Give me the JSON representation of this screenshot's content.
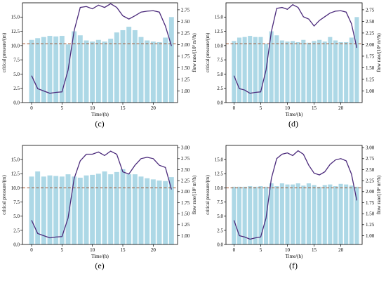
{
  "chart_data": [
    {
      "type": "bar",
      "panel_label": "(c)",
      "xlabel": "Time/(h)",
      "ylabel": "critical pressure/(m)",
      "y2label": "flow rate/(10³ m³/h)",
      "x_ticks": [
        0,
        5,
        10,
        15,
        20
      ],
      "y_ticks": [
        0.0,
        2.5,
        5.0,
        7.5,
        10.0,
        12.5,
        15.0
      ],
      "y2_ticks": [
        1.0,
        1.25,
        1.5,
        1.75,
        2.0,
        2.25,
        2.5,
        2.75
      ],
      "xlim": [
        -1.5,
        24
      ],
      "ylim": [
        0,
        17.5
      ],
      "y2lim": [
        0.75,
        2.9
      ],
      "reference_line": 10.3,
      "x": [
        0,
        1,
        2,
        3,
        4,
        5,
        6,
        7,
        8,
        9,
        10,
        11,
        12,
        13,
        14,
        15,
        16,
        17,
        18,
        19,
        20,
        21,
        22,
        23
      ],
      "series": [
        {
          "kind": "bar",
          "values": [
            11.0,
            11.3,
            11.5,
            11.7,
            11.6,
            11.7,
            10.2,
            12.5,
            11.8,
            10.9,
            10.7,
            11.0,
            10.7,
            11.2,
            12.3,
            12.7,
            13.3,
            12.7,
            11.5,
            10.9,
            10.7,
            10.6,
            11.4,
            15.0
          ]
        },
        {
          "kind": "line",
          "values": [
            1.33,
            1.05,
            1.0,
            0.95,
            0.97,
            0.98,
            1.45,
            2.3,
            2.8,
            2.82,
            2.77,
            2.85,
            2.8,
            2.88,
            2.8,
            2.62,
            2.55,
            2.62,
            2.7,
            2.72,
            2.73,
            2.7,
            2.4,
            1.97
          ]
        }
      ],
      "colors": {
        "bar": "#add8e6",
        "line": "#4b2a7b",
        "reference": "#a0522d"
      }
    },
    {
      "type": "bar",
      "panel_label": "(d)",
      "xlabel": "Time/(h)",
      "ylabel": "critical pressure/(m)",
      "y2label": "flow rate/(10³ m³/h)",
      "x_ticks": [
        0,
        5,
        10,
        15,
        20
      ],
      "y_ticks": [
        0.0,
        2.5,
        5.0,
        7.5,
        10.0,
        12.5,
        15.0
      ],
      "y2_ticks": [
        1.0,
        1.25,
        1.5,
        1.75,
        2.0,
        2.25,
        2.5,
        2.75
      ],
      "xlim": [
        -1.5,
        24
      ],
      "ylim": [
        0,
        17.5
      ],
      "y2lim": [
        0.75,
        2.9
      ],
      "reference_line": 10.3,
      "x": [
        0,
        1,
        2,
        3,
        4,
        5,
        6,
        7,
        8,
        9,
        10,
        11,
        12,
        13,
        14,
        15,
        16,
        17,
        18,
        19,
        20,
        21,
        22,
        23
      ],
      "series": [
        {
          "kind": "bar",
          "values": [
            10.8,
            11.4,
            11.5,
            11.7,
            11.5,
            11.5,
            10.3,
            12.5,
            11.8,
            10.9,
            10.7,
            10.8,
            10.6,
            11.0,
            10.5,
            10.8,
            11.0,
            10.7,
            11.5,
            10.9,
            10.6,
            10.6,
            11.4,
            15.0
          ]
        },
        {
          "kind": "line",
          "values": [
            1.33,
            1.05,
            1.02,
            0.95,
            0.97,
            0.98,
            1.45,
            2.28,
            2.78,
            2.8,
            2.76,
            2.86,
            2.8,
            2.6,
            2.55,
            2.4,
            2.52,
            2.6,
            2.68,
            2.72,
            2.73,
            2.7,
            2.45,
            1.93
          ]
        }
      ],
      "colors": {
        "bar": "#add8e6",
        "line": "#4b2a7b",
        "reference": "#a0522d"
      }
    },
    {
      "type": "bar",
      "panel_label": "(e)",
      "xlabel": "Time/(h)",
      "ylabel": "critical pressure/(m)",
      "y2label": "flow rate/(10³ m³/h)",
      "x_ticks": [
        0,
        5,
        10,
        15,
        20
      ],
      "y_ticks": [
        0.0,
        2.5,
        5.0,
        7.5,
        10.0,
        12.5,
        15.0
      ],
      "y2_ticks": [
        1.0,
        1.25,
        1.5,
        1.75,
        2.0,
        2.25,
        2.5,
        2.75,
        3.0
      ],
      "xlim": [
        -1.5,
        24
      ],
      "ylim": [
        0,
        17.5
      ],
      "y2lim": [
        0.8,
        3.05
      ],
      "reference_line": 10.0,
      "x": [
        0,
        1,
        2,
        3,
        4,
        5,
        6,
        7,
        8,
        9,
        10,
        11,
        12,
        13,
        14,
        15,
        16,
        17,
        18,
        19,
        20,
        21,
        22,
        23
      ],
      "series": [
        {
          "kind": "bar",
          "values": [
            12.0,
            12.9,
            12.0,
            12.2,
            12.1,
            12.0,
            12.4,
            12.0,
            11.8,
            12.2,
            12.3,
            12.5,
            12.9,
            12.4,
            12.8,
            13.3,
            12.4,
            12.4,
            12.0,
            11.7,
            11.5,
            11.3,
            11.2,
            11.9
          ]
        },
        {
          "kind": "line",
          "values": [
            1.35,
            1.05,
            1.0,
            0.95,
            0.97,
            0.98,
            1.4,
            2.3,
            2.7,
            2.85,
            2.85,
            2.9,
            2.82,
            2.92,
            2.85,
            2.45,
            2.4,
            2.6,
            2.75,
            2.78,
            2.75,
            2.6,
            2.55,
            2.05
          ]
        }
      ],
      "colors": {
        "bar": "#add8e6",
        "line": "#4b2a7b",
        "reference": "#a0522d"
      }
    },
    {
      "type": "bar",
      "panel_label": "(f)",
      "xlabel": "Time/(h)",
      "ylabel": "critical pressure/(m)",
      "y2label": "flow rate/(10³ m³/h)",
      "x_ticks": [
        0,
        5,
        10,
        15,
        20
      ],
      "y_ticks": [
        0.0,
        2.5,
        5.0,
        7.5,
        10.0,
        12.5,
        15.0
      ],
      "y2_ticks": [
        1.0,
        1.25,
        1.5,
        1.75,
        2.0,
        2.25,
        2.5,
        2.75,
        3.0
      ],
      "xlim": [
        -1.5,
        24
      ],
      "ylim": [
        0,
        17.5
      ],
      "y2lim": [
        0.8,
        3.05
      ],
      "reference_line": 10.0,
      "x": [
        0,
        1,
        2,
        3,
        4,
        5,
        6,
        7,
        8,
        9,
        10,
        11,
        12,
        13,
        14,
        15,
        16,
        17,
        18,
        19,
        20,
        21,
        22,
        23
      ],
      "series": [
        {
          "kind": "bar",
          "values": [
            10.2,
            10.2,
            10.2,
            10.3,
            10.2,
            10.3,
            10.2,
            10.8,
            10.3,
            10.8,
            10.6,
            10.6,
            10.8,
            10.4,
            10.8,
            10.5,
            10.2,
            10.5,
            10.6,
            10.3,
            10.7,
            10.6,
            10.4,
            10.2
          ]
        },
        {
          "kind": "line",
          "values": [
            1.35,
            1.0,
            0.97,
            0.92,
            0.95,
            0.97,
            1.4,
            2.3,
            2.75,
            2.85,
            2.88,
            2.82,
            2.93,
            2.85,
            2.6,
            2.42,
            2.38,
            2.45,
            2.62,
            2.72,
            2.75,
            2.7,
            2.4,
            1.8
          ]
        }
      ],
      "colors": {
        "bar": "#add8e6",
        "line": "#4b2a7b",
        "reference": "#a0522d"
      }
    }
  ]
}
